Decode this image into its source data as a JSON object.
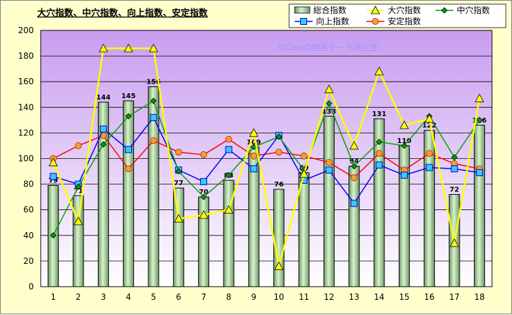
{
  "chart_data": {
    "type": "bar+line",
    "title": "大穴指数、中穴指数、向上指数、安定指数",
    "watermark": "©Caniの競馬データ研究室",
    "categories": [
      "1",
      "2",
      "3",
      "4",
      "5",
      "6",
      "7",
      "8",
      "9",
      "10",
      "11",
      "12",
      "13",
      "14",
      "15",
      "16",
      "17",
      "18"
    ],
    "ylim": [
      0,
      200
    ],
    "yticks": [
      "0",
      "20",
      "40",
      "60",
      "80",
      "100",
      "120",
      "140",
      "160",
      "180",
      "200"
    ],
    "bar": {
      "name": "総合指数",
      "values": [
        79,
        71,
        144,
        145,
        156,
        77,
        70,
        83,
        109,
        76,
        89,
        133,
        94,
        131,
        110,
        122,
        72,
        126
      ],
      "labels": [
        "79",
        "71",
        "144",
        "145",
        "156",
        "77",
        "70",
        "83",
        "109",
        "76",
        "89",
        "133",
        "94",
        "131",
        "110",
        "122",
        "72",
        "126"
      ],
      "color": "#b4e0a8"
    },
    "series": [
      {
        "name": "大穴指数",
        "marker": "triangle",
        "color": "#ffff00",
        "values": [
          97,
          51,
          186,
          186,
          186,
          53,
          56,
          60,
          120,
          16,
          88,
          154,
          110,
          168,
          126,
          131,
          34,
          147
        ]
      },
      {
        "name": "中穴指数",
        "marker": "diamond",
        "color": "#00a000",
        "values": [
          40,
          78,
          111,
          133,
          145,
          90,
          70,
          87,
          109,
          117,
          91,
          143,
          94,
          113,
          110,
          133,
          101,
          130
        ]
      },
      {
        "name": "向上指数",
        "marker": "square",
        "color": "#0000ff",
        "values": [
          86,
          80,
          123,
          107,
          132,
          91,
          82,
          107,
          92,
          118,
          83,
          91,
          65,
          95,
          87,
          93,
          92,
          89
        ]
      },
      {
        "name": "安定指数",
        "marker": "circle",
        "color": "#ff0000",
        "values": [
          100,
          110,
          118,
          92,
          114,
          105,
          103,
          115,
          102,
          105,
          102,
          97,
          85,
          104,
          91,
          104,
          96,
          92
        ]
      }
    ],
    "legend": "top-right"
  }
}
